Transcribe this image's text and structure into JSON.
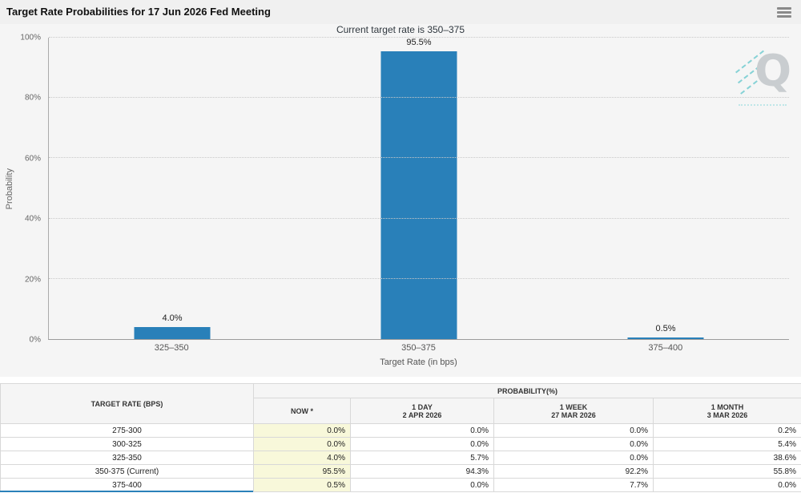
{
  "header": {
    "title": "Target Rate Probabilities for 17 Jun 2026 Fed Meeting"
  },
  "chart": {
    "subtitle": "Current target rate is 350–375",
    "watermark_letter": "Q"
  },
  "chart_data": {
    "type": "bar",
    "title": "Target Rate Probabilities for 17 Jun 2026 Fed Meeting",
    "subtitle": "Current target rate is 350–375",
    "categories": [
      "325–350",
      "350–375",
      "375–400"
    ],
    "values": [
      4.0,
      95.5,
      0.5
    ],
    "value_labels": [
      "4.0%",
      "95.5%",
      "0.5%"
    ],
    "xlabel": "Target Rate (in bps)",
    "ylabel": "Probability",
    "ylim": [
      0,
      100
    ],
    "ytick_labels": [
      "0%",
      "20%",
      "40%",
      "60%",
      "80%",
      "100%"
    ],
    "bar_color": "#2980b9",
    "grid": "horizontal-dotted",
    "legend": "none"
  },
  "table": {
    "target_rate_header": "TARGET RATE (BPS)",
    "probability_header": "PROBABILITY(%)",
    "columns": [
      {
        "label": "NOW *",
        "sub": ""
      },
      {
        "label": "1 DAY",
        "sub": "2 APR 2026"
      },
      {
        "label": "1 WEEK",
        "sub": "27 MAR 2026"
      },
      {
        "label": "1 MONTH",
        "sub": "3 MAR 2026"
      }
    ],
    "rows": [
      {
        "rate": "275-300",
        "now": "0.0%",
        "day1": "0.0%",
        "week1": "0.0%",
        "month1": "0.2%"
      },
      {
        "rate": "300-325",
        "now": "0.0%",
        "day1": "0.0%",
        "week1": "0.0%",
        "month1": "5.4%"
      },
      {
        "rate": "325-350",
        "now": "4.0%",
        "day1": "5.7%",
        "week1": "0.0%",
        "month1": "38.6%"
      },
      {
        "rate": "350-375 (Current)",
        "now": "95.5%",
        "day1": "94.3%",
        "week1": "92.2%",
        "month1": "55.8%"
      },
      {
        "rate": "375-400",
        "now": "0.5%",
        "day1": "0.0%",
        "week1": "7.7%",
        "month1": "0.0%"
      }
    ]
  }
}
